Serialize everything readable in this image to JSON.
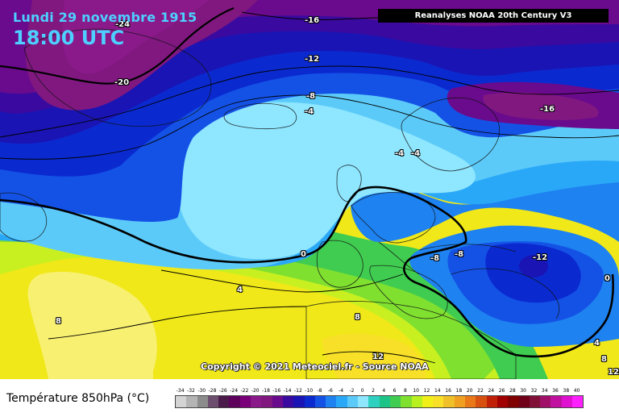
{
  "header": {
    "date": "Lundi 29 novembre 1915",
    "time": "18:00 UTC",
    "source": "Reanalyses NOAA 20th Century V3"
  },
  "copyright": "Copyright © 2021 Meteociel.fr - Source NOAA",
  "legend": {
    "title": "Température 850hPa (°C)",
    "ticks": [
      "-34",
      "-32",
      "-30",
      "-28",
      "-26",
      "-24",
      "-22",
      "-20",
      "-18",
      "-16",
      "-14",
      "-12",
      "-10",
      "-8",
      "-6",
      "-4",
      "-2",
      "0",
      "2",
      "4",
      "6",
      "8",
      "10",
      "12",
      "14",
      "16",
      "18",
      "20",
      "22",
      "24",
      "26",
      "28",
      "30",
      "32",
      "34",
      "36",
      "38",
      "40"
    ],
    "colors": [
      "#d4d4d4",
      "#b4b4b4",
      "#8c8c8c",
      "#6e4e6e",
      "#4a1a4a",
      "#5c005c",
      "#7a007a",
      "#8a1a8a",
      "#801880",
      "#6a0a8c",
      "#3a0aa0",
      "#1a14b4",
      "#0a2ad0",
      "#1452e6",
      "#1e82f0",
      "#2aa8f8",
      "#5ccaf8",
      "#8ee6ff",
      "#2ed0c0",
      "#1cc488",
      "#40cc50",
      "#80e030",
      "#b8f020",
      "#f0f018",
      "#f8e028",
      "#f0c028",
      "#f0a020",
      "#e87818",
      "#d85010",
      "#c02008",
      "#a00000",
      "#800000",
      "#700018",
      "#801038",
      "#a01068",
      "#c010a0",
      "#e010d0",
      "#ff20ff"
    ]
  },
  "contour_labels": [
    {
      "text": "-24"
    },
    {
      "text": "-20"
    },
    {
      "text": "-16"
    },
    {
      "text": "-12"
    },
    {
      "text": "-8"
    },
    {
      "text": "-4"
    },
    {
      "text": "-16"
    },
    {
      "text": "-4"
    },
    {
      "text": "-4"
    },
    {
      "text": "0"
    },
    {
      "text": "4"
    },
    {
      "text": "8"
    },
    {
      "text": "8"
    },
    {
      "text": "12"
    },
    {
      "text": "-8"
    },
    {
      "text": "-8"
    },
    {
      "text": "-12"
    },
    {
      "text": "0"
    },
    {
      "text": "4"
    },
    {
      "text": "8"
    },
    {
      "text": "12"
    }
  ]
}
